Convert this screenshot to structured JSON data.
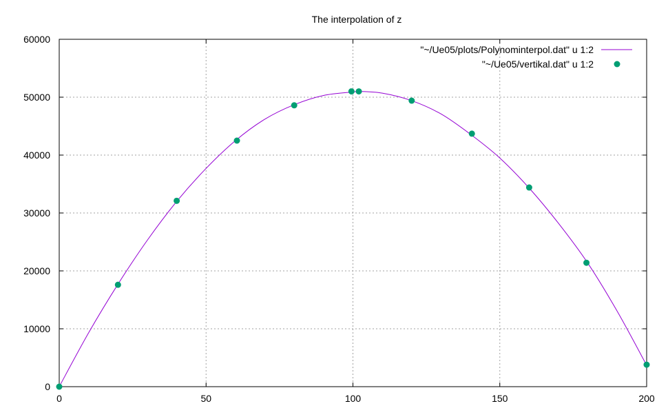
{
  "chart_data": {
    "type": "line",
    "title": "The interpolation of z",
    "xlabel": "",
    "ylabel": "",
    "xlim": [
      0,
      200
    ],
    "ylim": [
      0,
      60000
    ],
    "x_ticks": [
      0,
      50,
      100,
      150,
      200
    ],
    "y_ticks": [
      0,
      10000,
      20000,
      30000,
      40000,
      50000,
      60000
    ],
    "grid": true,
    "legend_position": "top-right",
    "series": [
      {
        "name": "\"~/Ue05/plots/Polynominterpol.dat\" u 1:2",
        "style": "line",
        "color": "#9400d3",
        "x": [
          0,
          10,
          20,
          30,
          40,
          50,
          60,
          70,
          80,
          90,
          100,
          102,
          110,
          120,
          130,
          140,
          150,
          160,
          170,
          180,
          190,
          200
        ],
        "y": [
          0,
          9300,
          17700,
          25300,
          32000,
          37700,
          42500,
          46200,
          48700,
          50300,
          50900,
          51000,
          50700,
          49400,
          47100,
          43600,
          39500,
          34300,
          28200,
          21300,
          13000,
          3700
        ]
      },
      {
        "name": "\"~/Ue05/vertikal.dat\" u 1:2",
        "style": "points",
        "color": "#009e73",
        "x": [
          0,
          20,
          40,
          60.5,
          80,
          99.5,
          102,
          120,
          140.5,
          160,
          179.5,
          200
        ],
        "y": [
          0,
          17600,
          32100,
          42500,
          48600,
          51000,
          51000,
          49400,
          43700,
          34400,
          21400,
          3800
        ]
      }
    ]
  },
  "colors": {
    "frame": "#000000",
    "grid": "#a0a0a0",
    "line_series": "#9400d3",
    "point_series": "#009e73"
  }
}
